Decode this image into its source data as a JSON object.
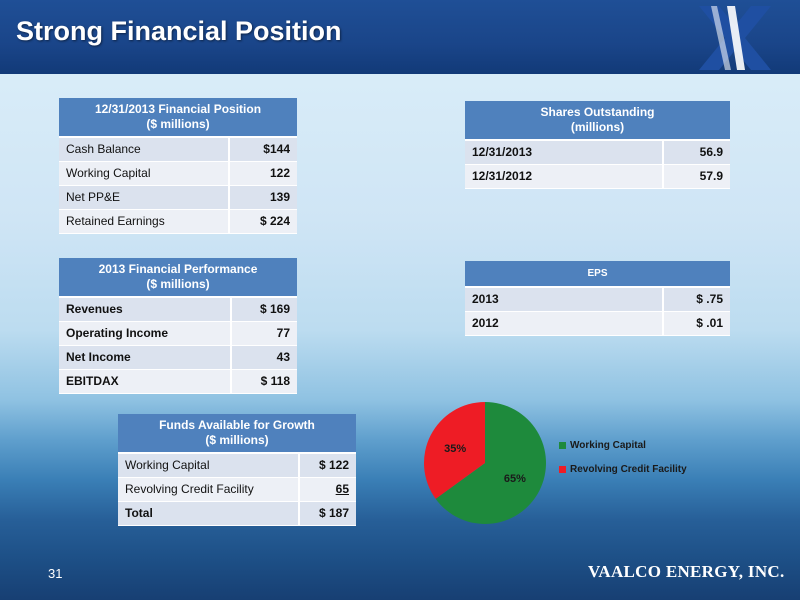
{
  "title": "Strong Financial Position",
  "slide_number": "31",
  "company": "VAALCO ENERGY, INC.",
  "financial_position": {
    "header_line1": "12/31/2013 Financial Position",
    "header_line2": "($ millions)",
    "rows": [
      {
        "label": "Cash Balance",
        "value": "$144"
      },
      {
        "label": "Working Capital",
        "value": "122"
      },
      {
        "label": "Net PP&E",
        "value": "139"
      },
      {
        "label": "Retained Earnings",
        "value": "$ 224"
      }
    ]
  },
  "financial_performance": {
    "header_line1": "2013 Financial Performance",
    "header_line2": "($ millions)",
    "rows": [
      {
        "label": "Revenues",
        "value": "$ 169"
      },
      {
        "label": "Operating Income",
        "value": "77"
      },
      {
        "label": "Net Income",
        "value": "43"
      },
      {
        "label": "EBITDAX",
        "value": "$ 118"
      }
    ]
  },
  "funds_available": {
    "header_line1": "Funds  Available for Growth",
    "header_line2": "($ millions)",
    "rows": [
      {
        "label": "Working Capital",
        "value": "$ 122"
      },
      {
        "label": "Revolving Credit Facility",
        "value": "65"
      },
      {
        "label": "Total",
        "value": "$ 187"
      }
    ]
  },
  "shares_outstanding": {
    "header_line1": "Shares Outstanding",
    "header_line2": "(millions)",
    "rows": [
      {
        "label": "12/31/2013",
        "value": "56.9"
      },
      {
        "label": "12/31/2012",
        "value": "57.9"
      }
    ]
  },
  "eps": {
    "header": "EPS",
    "rows": [
      {
        "label": "2013",
        "value": "$ .75"
      },
      {
        "label": "2012",
        "value": "$ .01"
      }
    ]
  },
  "colors": {
    "header_blue": "#1a4589",
    "table_header": "#4f81bd",
    "working_capital": "#1e8a3c",
    "revolving_credit": "#ee1c25"
  },
  "chart_data": {
    "type": "pie",
    "categories": [
      "Working Capital",
      "Revolving Credit Facility"
    ],
    "values": [
      65,
      35
    ],
    "labels": [
      "65%",
      "35%"
    ],
    "colors": [
      "#1e8a3c",
      "#ee1c25"
    ],
    "legend": "right"
  }
}
